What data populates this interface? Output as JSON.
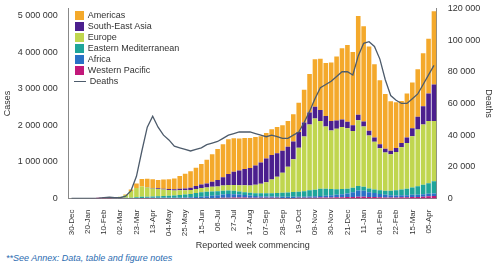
{
  "chart_data": {
    "type": "bar",
    "stacked": true,
    "grid": false,
    "legend": "upper left",
    "x_label": "Reported week commencing",
    "y_label": "Cases",
    "y2_label": "Deaths",
    "annotations": [
      "**See Annex: Data, table and figure notes"
    ],
    "categories": [
      "30-Dec",
      null,
      null,
      "20-Jan",
      null,
      null,
      "10-Feb",
      null,
      null,
      "02-Mar",
      null,
      null,
      "23-Mar",
      null,
      null,
      "13-Apr",
      null,
      null,
      "04-May",
      null,
      null,
      "25-May",
      null,
      null,
      "15-Jun",
      null,
      null,
      "06-Jul",
      null,
      null,
      "27-Jul",
      null,
      null,
      "17-Aug",
      null,
      null,
      "07-Sep",
      null,
      null,
      "28-Sep",
      null,
      null,
      "19-Oct",
      null,
      null,
      "09-Nov",
      null,
      null,
      "30-Nov",
      null,
      null,
      "21-Dec",
      null,
      null,
      "11-Jan",
      null,
      null,
      "01-Feb",
      null,
      null,
      "22-Feb",
      null,
      null,
      "15-Mar",
      null,
      null,
      "05-Apr",
      null
    ],
    "ylim": [
      0,
      5200000
    ],
    "yticks": [
      0,
      {
        "value": 1000000,
        "label": "1 000 000"
      },
      {
        "value": 2000000,
        "label": "2 000 000"
      },
      {
        "value": 3000000,
        "label": "3 000 000"
      },
      {
        "value": 4000000,
        "label": "4 000 000"
      },
      {
        "value": 5000000,
        "label": "5 000 000"
      }
    ],
    "y2lim": [
      0,
      120000
    ],
    "y2ticks": [
      0,
      {
        "value": 20000,
        "label": "20 000"
      },
      {
        "value": 40000,
        "label": "40 000"
      },
      {
        "value": 60000,
        "label": "60 000"
      },
      {
        "value": 80000,
        "label": "80 000"
      },
      {
        "value": 100000,
        "label": "100 000"
      },
      {
        "value": 120000,
        "label": "120 000"
      }
    ],
    "series": [
      {
        "name": "Americas",
        "color": "#f4a92b",
        "values": [
          0,
          0,
          0,
          0,
          0,
          0,
          0,
          0,
          0,
          0,
          10000,
          40000,
          120000,
          200000,
          230000,
          240000,
          230000,
          250000,
          270000,
          300000,
          350000,
          400000,
          450000,
          500000,
          560000,
          650000,
          750000,
          850000,
          900000,
          950000,
          920000,
          880000,
          850000,
          820000,
          780000,
          720000,
          700000,
          700000,
          720000,
          700000,
          700000,
          750000,
          800000,
          900000,
          1050000,
          1300000,
          1400000,
          1450000,
          1600000,
          1750000,
          1950000,
          2100000,
          2000000,
          2700000,
          2600000,
          2300000,
          2000000,
          1750000,
          1500000,
          1350000,
          1250000,
          1150000,
          1200000,
          1250000,
          1300000,
          1450000,
          1500000,
          2000000
        ]
      },
      {
        "name": "South-East Asia",
        "color": "#4b1f8e",
        "values": [
          0,
          0,
          0,
          0,
          0,
          0,
          0,
          0,
          0,
          0,
          0,
          1000,
          3000,
          5000,
          8000,
          12000,
          15000,
          20000,
          25000,
          30000,
          40000,
          50000,
          65000,
          80000,
          95000,
          110000,
          140000,
          180000,
          230000,
          300000,
          360000,
          400000,
          440000,
          480000,
          530000,
          580000,
          650000,
          670000,
          640000,
          600000,
          550000,
          480000,
          430000,
          380000,
          330000,
          320000,
          300000,
          290000,
          260000,
          230000,
          200000,
          180000,
          160000,
          150000,
          140000,
          130000,
          120000,
          110000,
          100000,
          100000,
          110000,
          120000,
          150000,
          220000,
          350000,
          500000,
          750000,
          1000000
        ]
      },
      {
        "name": "Europe",
        "color": "#c0d64f",
        "values": [
          0,
          0,
          0,
          0,
          0,
          0,
          0,
          0,
          5000,
          30000,
          80000,
          180000,
          250000,
          280000,
          250000,
          220000,
          200000,
          180000,
          160000,
          140000,
          130000,
          120000,
          110000,
          110000,
          120000,
          120000,
          130000,
          130000,
          140000,
          150000,
          160000,
          170000,
          190000,
          200000,
          230000,
          260000,
          300000,
          380000,
          450000,
          550000,
          700000,
          900000,
          1200000,
          1500000,
          1800000,
          1950000,
          1850000,
          1700000,
          1600000,
          1650000,
          1700000,
          1650000,
          1550000,
          1800000,
          1650000,
          1450000,
          1300000,
          1150000,
          1050000,
          1000000,
          1050000,
          1150000,
          1250000,
          1400000,
          1550000,
          1650000,
          1700000,
          1650000
        ]
      },
      {
        "name": "Eastern Mediterranean",
        "color": "#1fa59a",
        "values": [
          0,
          0,
          0,
          0,
          0,
          0,
          0,
          0,
          5000,
          10000,
          10000,
          15000,
          25000,
          30000,
          30000,
          35000,
          45000,
          50000,
          55000,
          60000,
          70000,
          80000,
          90000,
          110000,
          120000,
          120000,
          115000,
          110000,
          105000,
          100000,
          90000,
          85000,
          80000,
          75000,
          75000,
          80000,
          85000,
          90000,
          100000,
          110000,
          120000,
          130000,
          140000,
          150000,
          170000,
          180000,
          200000,
          190000,
          170000,
          150000,
          140000,
          130000,
          120000,
          120000,
          110000,
          100000,
          100000,
          100000,
          110000,
          120000,
          140000,
          160000,
          180000,
          200000,
          230000,
          260000,
          290000,
          330000
        ]
      },
      {
        "name": "Africa",
        "color": "#2a71c6",
        "values": [
          0,
          0,
          0,
          0,
          0,
          0,
          0,
          0,
          0,
          0,
          0,
          1000,
          3000,
          5000,
          5000,
          8000,
          8000,
          10000,
          12000,
          15000,
          18000,
          22000,
          28000,
          35000,
          45000,
          55000,
          65000,
          75000,
          90000,
          100000,
          95000,
          85000,
          70000,
          60000,
          50000,
          45000,
          40000,
          35000,
          30000,
          30000,
          30000,
          30000,
          30000,
          30000,
          35000,
          40000,
          45000,
          50000,
          60000,
          70000,
          80000,
          100000,
          130000,
          170000,
          160000,
          130000,
          110000,
          90000,
          70000,
          60000,
          55000,
          55000,
          55000,
          60000,
          60000,
          65000,
          70000,
          70000
        ]
      },
      {
        "name": "Western Pacific",
        "color": "#c2187a",
        "values": [
          0,
          0,
          0,
          1000,
          10000,
          20000,
          25000,
          15000,
          10000,
          10000,
          8000,
          8000,
          10000,
          12000,
          15000,
          12000,
          10000,
          8000,
          7000,
          6000,
          6000,
          5000,
          5000,
          5000,
          6000,
          7000,
          9000,
          12000,
          18000,
          22000,
          25000,
          25000,
          25000,
          22000,
          20000,
          18000,
          18000,
          18000,
          18000,
          17000,
          17000,
          17000,
          18000,
          18000,
          20000,
          22000,
          25000,
          28000,
          30000,
          35000,
          38000,
          40000,
          45000,
          50000,
          50000,
          45000,
          40000,
          35000,
          30000,
          30000,
          30000,
          35000,
          35000,
          40000,
          45000,
          50000,
          60000,
          70000
        ]
      },
      {
        "name": "Deaths",
        "color": "#4d5b6b",
        "type": "line",
        "axis": "y2",
        "values": [
          0,
          0,
          0,
          0,
          100,
          300,
          600,
          800,
          600,
          500,
          1500,
          5000,
          14000,
          30000,
          45000,
          52000,
          45000,
          40000,
          37000,
          33000,
          32000,
          31000,
          30000,
          31000,
          32000,
          34000,
          35000,
          36000,
          38000,
          40000,
          41000,
          42000,
          42000,
          42000,
          41000,
          40000,
          39000,
          40000,
          39000,
          38000,
          38000,
          40000,
          42000,
          48000,
          55000,
          63000,
          70000,
          72000,
          74000,
          77000,
          80000,
          80000,
          78000,
          90000,
          98000,
          99000,
          96000,
          88000,
          75000,
          65000,
          62000,
          60000,
          60000,
          63000,
          66000,
          72000,
          78000,
          84000
        ]
      }
    ]
  }
}
